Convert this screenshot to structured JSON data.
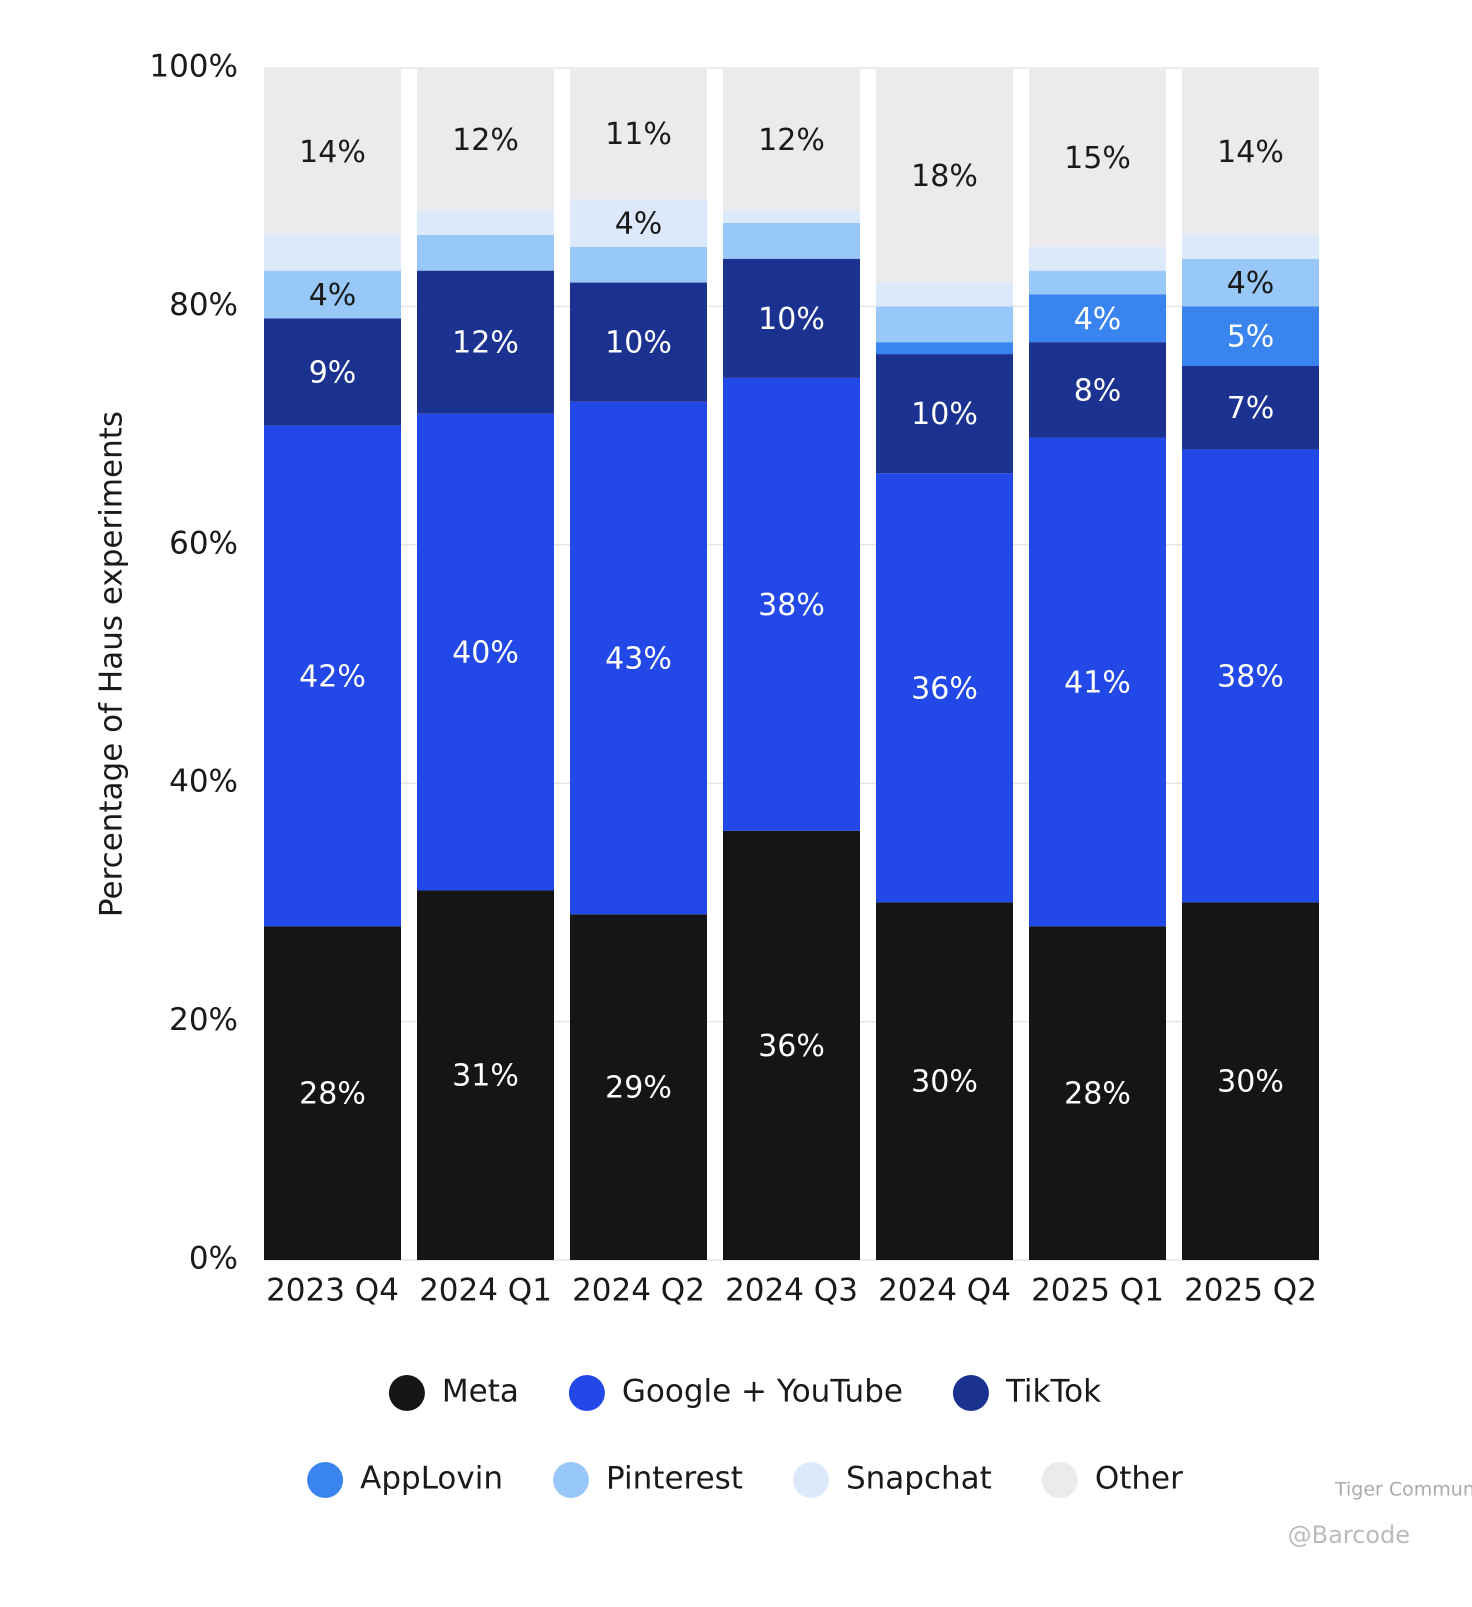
{
  "chart_data": {
    "type": "stacked_bar",
    "y_label": "Percentage of Haus experiments",
    "categories": [
      "2023 Q4",
      "2024 Q1",
      "2024 Q2",
      "2024 Q3",
      "2024 Q4",
      "2025 Q1",
      "2025 Q2"
    ],
    "series": [
      {
        "name": "Meta",
        "color": "#151518",
        "values": [
          28,
          31,
          29,
          36,
          30,
          28,
          30
        ],
        "value_labels": [
          "28%",
          "31%",
          "29%",
          "36%",
          "30%",
          "28%",
          "30%"
        ]
      },
      {
        "name": "Google + YouTube",
        "color": "#2249e8",
        "values": [
          42,
          40,
          43,
          38,
          36,
          41,
          38
        ],
        "value_labels": [
          "42%",
          "40%",
          "43%",
          "38%",
          "36%",
          "41%",
          "38%"
        ]
      },
      {
        "name": "TikTok",
        "color": "#1b3290",
        "values": [
          9,
          12,
          10,
          10,
          10,
          8,
          7
        ],
        "value_labels": [
          "9%",
          "12%",
          "10%",
          "10%",
          "10%",
          "8%",
          "7%"
        ]
      },
      {
        "name": "AppLovin",
        "color": "#3a84f0",
        "values": [
          0,
          0,
          0,
          0,
          1,
          4,
          5
        ],
        "value_labels": [
          null,
          null,
          null,
          null,
          null,
          "4%",
          "5%"
        ]
      },
      {
        "name": "Pinterest",
        "color": "#98c8f7",
        "values": [
          4,
          3,
          3,
          3,
          3,
          2,
          4
        ],
        "value_labels": [
          "4%",
          null,
          null,
          null,
          null,
          null,
          "4%"
        ]
      },
      {
        "name": "Snapchat",
        "color": "#dbe9fb",
        "values": [
          3,
          2,
          4,
          1,
          2,
          2,
          2
        ],
        "value_labels": [
          null,
          null,
          "4%",
          null,
          null,
          null,
          null
        ]
      },
      {
        "name": "Other",
        "color": "#ebebee",
        "values": [
          14,
          12,
          11,
          12,
          18,
          15,
          14
        ],
        "value_labels": [
          "14%",
          "12%",
          "11%",
          "12%",
          "18%",
          "15%",
          "14%"
        ]
      }
    ],
    "ylim": [
      0,
      100
    ],
    "yticks": [
      {
        "value": 0,
        "label": "0%"
      },
      {
        "value": 20,
        "label": "20%"
      },
      {
        "value": 40,
        "label": "40%"
      },
      {
        "value": 60,
        "label": "60%"
      },
      {
        "value": 80,
        "label": "80%"
      },
      {
        "value": 100,
        "label": "100%"
      }
    ],
    "grid": true,
    "legend": "bottom"
  },
  "watermark": [
    "Tiger Community",
    "@Barcode"
  ]
}
